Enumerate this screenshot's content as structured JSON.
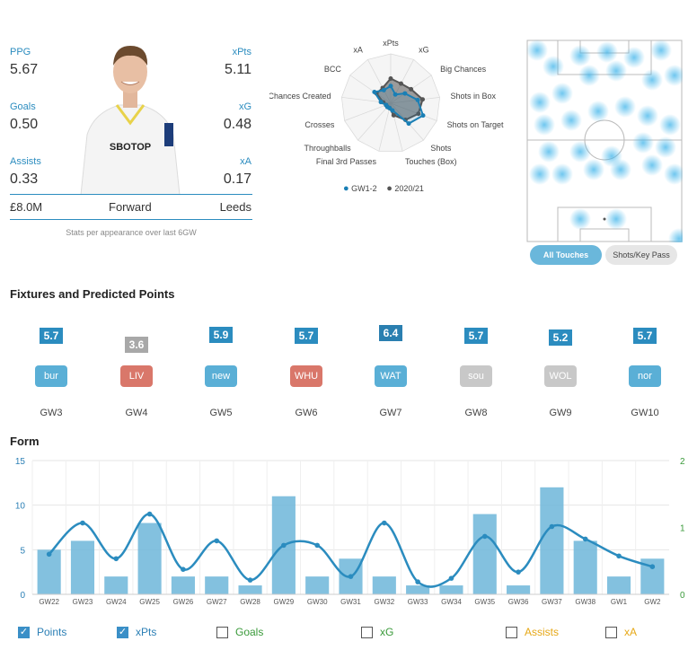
{
  "player": {
    "stats_left": [
      {
        "label": "PPG",
        "value": "5.67"
      },
      {
        "label": "Goals",
        "value": "0.50"
      },
      {
        "label": "Assists",
        "value": "0.33"
      }
    ],
    "stats_right": [
      {
        "label": "xPts",
        "value": "5.11"
      },
      {
        "label": "xG",
        "value": "0.48"
      },
      {
        "label": "xA",
        "value": "0.17"
      }
    ],
    "price": "£8.0M",
    "position": "Forward",
    "team": "Leeds",
    "note": "Stats per appearance over last 6GW",
    "shirt_text": "SBOTOP"
  },
  "radar": {
    "axes": [
      "xPts",
      "xG",
      "Big Chances",
      "Shots in Box",
      "Shots on Target",
      "Shots",
      "Touches (Box)",
      "Final 3rd Passes",
      "Throughballs",
      "Crosses",
      "Chances Created",
      "BCC",
      "xA"
    ],
    "legend": [
      {
        "label": "GW1-2",
        "color": "#1a7fb5"
      },
      {
        "label": "2020/21",
        "color": "#555555"
      }
    ],
    "gw_values": [
      0.35,
      0.2,
      0.35,
      0.55,
      0.7,
      0.55,
      0.15,
      0.1,
      0.1,
      0.1,
      0.2,
      0.4,
      0.3
    ],
    "season_values": [
      0.5,
      0.45,
      0.5,
      0.65,
      0.6,
      0.45,
      0.25,
      0.1,
      0.1,
      0.1,
      0.15,
      0.35,
      0.35
    ]
  },
  "heatmap_buttons": {
    "all_touches": "All Touches",
    "shots_key_pass": "Shots/Key Pass"
  },
  "fixtures": {
    "title": "Fixtures and Predicted Points",
    "items": [
      {
        "pred": "5.7",
        "team": "bur",
        "gw": "GW3",
        "color": "#5aafd6",
        "pred_color": "#2b8cbf"
      },
      {
        "pred": "3.6",
        "team": "LIV",
        "gw": "GW4",
        "color": "#d9776a",
        "pred_color": "#a8a8a8"
      },
      {
        "pred": "5.9",
        "team": "new",
        "gw": "GW5",
        "color": "#5aafd6",
        "pred_color": "#2b8cbf"
      },
      {
        "pred": "5.7",
        "team": "WHU",
        "gw": "GW6",
        "color": "#d9776a",
        "pred_color": "#2b8cbf"
      },
      {
        "pred": "6.4",
        "team": "WAT",
        "gw": "GW7",
        "color": "#5aafd6",
        "pred_color": "#2a7fb0"
      },
      {
        "pred": "5.7",
        "team": "sou",
        "gw": "GW8",
        "color": "#c8c8c8",
        "pred_color": "#2b8cbf"
      },
      {
        "pred": "5.2",
        "team": "WOL",
        "gw": "GW9",
        "color": "#c8c8c8",
        "pred_color": "#2b8cbf"
      },
      {
        "pred": "5.7",
        "team": "nor",
        "gw": "GW10",
        "color": "#5aafd6",
        "pred_color": "#2b8cbf"
      }
    ]
  },
  "form": {
    "title": "Form",
    "legend": [
      {
        "label": "Points",
        "checked": true,
        "color": "#2b7fb5"
      },
      {
        "label": "xPts",
        "checked": true,
        "color": "#2b7fb5"
      },
      {
        "label": "Goals",
        "checked": false,
        "color": "#3a9a3a"
      },
      {
        "label": "xG",
        "checked": false,
        "color": "#3a9a3a"
      },
      {
        "label": "Assists",
        "checked": false,
        "color": "#e6a817"
      },
      {
        "label": "xA",
        "checked": false,
        "color": "#e6a817"
      }
    ]
  },
  "chart_data": {
    "type": "bar",
    "categories": [
      "GW22",
      "GW23",
      "GW24",
      "GW25",
      "GW26",
      "GW27",
      "GW28",
      "GW29",
      "GW30",
      "GW31",
      "GW32",
      "GW33",
      "GW34",
      "GW35",
      "GW36",
      "GW37",
      "GW38",
      "GW1",
      "GW2"
    ],
    "series": [
      {
        "name": "Points",
        "type": "bar",
        "values": [
          5,
          6,
          2,
          8,
          2,
          2,
          1,
          11,
          2,
          4,
          2,
          1,
          1,
          9,
          1,
          12,
          6,
          2,
          4
        ]
      },
      {
        "name": "xPts",
        "type": "line",
        "values": [
          4.5,
          8,
          4,
          9,
          2.8,
          6,
          1.6,
          5.5,
          5.5,
          2,
          8,
          1.4,
          1.8,
          6.5,
          2.5,
          7.6,
          6.2,
          4.3,
          3.1
        ]
      }
    ],
    "ylim": [
      0,
      15
    ],
    "yticks": [
      0,
      5,
      10,
      15
    ],
    "y2lim": [
      0,
      2
    ],
    "y2ticks": [
      0,
      1,
      2
    ]
  }
}
